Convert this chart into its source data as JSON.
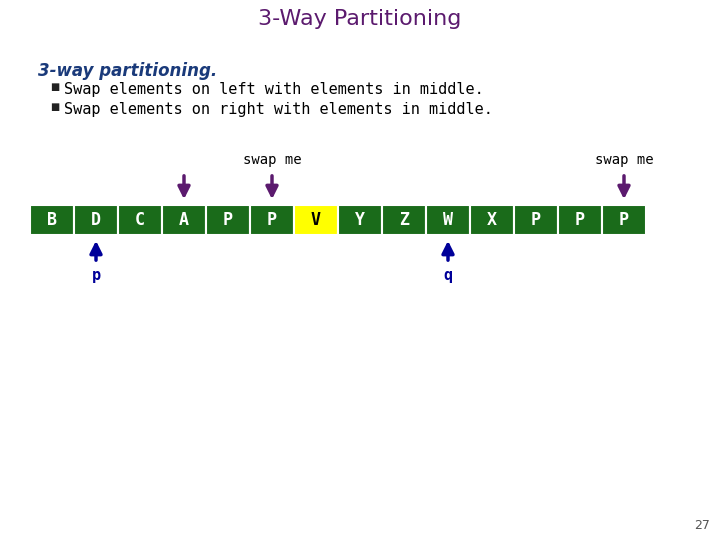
{
  "title": "3-Way Partitioning",
  "title_color": "#5B1A6E",
  "title_fontsize": 16,
  "heading": "3-way partitioning.",
  "heading_color": "#1A3A7A",
  "bullet1": "Swap elements on left with elements in middle.",
  "bullet2": "Swap elements on right with elements in middle.",
  "bullet_color": "#000000",
  "array_elements": [
    "B",
    "D",
    "C",
    "A",
    "P",
    "P",
    "V",
    "Y",
    "Z",
    "W",
    "X",
    "P",
    "P",
    "P"
  ],
  "cell_colors": [
    "#1A6B1A",
    "#1A6B1A",
    "#1A6B1A",
    "#1A6B1A",
    "#1A6B1A",
    "#1A6B1A",
    "#FFFF00",
    "#1A6B1A",
    "#1A6B1A",
    "#1A6B1A",
    "#1A6B1A",
    "#1A6B1A",
    "#1A6B1A",
    "#1A6B1A"
  ],
  "text_colors": [
    "#FFFFFF",
    "#FFFFFF",
    "#FFFFFF",
    "#FFFFFF",
    "#FFFFFF",
    "#FFFFFF",
    "#000000",
    "#FFFFFF",
    "#FFFFFF",
    "#FFFFFF",
    "#FFFFFF",
    "#FFFFFF",
    "#FFFFFF",
    "#FFFFFF"
  ],
  "down_arrow_indices": [
    3,
    5,
    13
  ],
  "down_arrow_color": "#5B1A6E",
  "up_arrow_indices": [
    1,
    9
  ],
  "up_arrow_color": "#000099",
  "swap_me_label_indices": [
    5,
    13
  ],
  "p_label_index": 1,
  "q_label_index": 9,
  "page_number": "27",
  "background_color": "#FFFFFF"
}
